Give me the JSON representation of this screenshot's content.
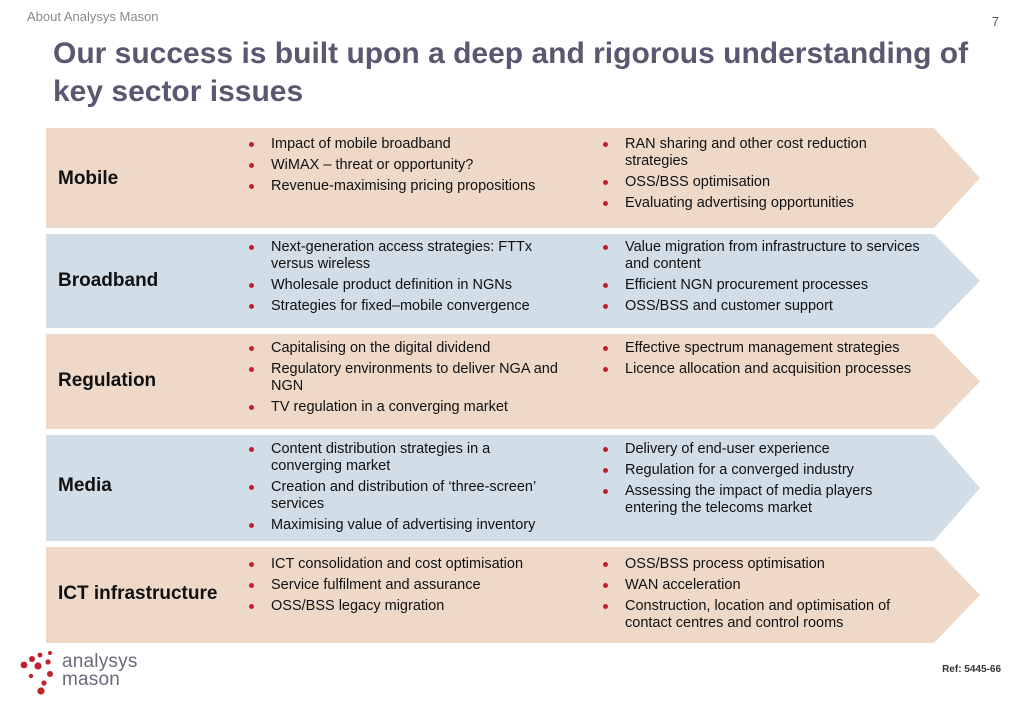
{
  "header": {
    "kicker": "About Analysys Mason",
    "page_number": "7",
    "title": "Our success is built upon a deep and rigorous understanding of key sector issues"
  },
  "colors": {
    "warm_band": "#eed9c9",
    "cool_band": "#d1dde7",
    "bullet": "#c0212b",
    "title": "#5a5870"
  },
  "sectors": [
    {
      "label": "Mobile",
      "left": [
        "Impact of mobile broadband",
        "WiMAX – threat or opportunity?",
        "Revenue-maximising pricing propositions"
      ],
      "right": [
        "RAN sharing and other cost reduction strategies",
        "OSS/BSS optimisation",
        "Evaluating advertising opportunities"
      ]
    },
    {
      "label": "Broadband",
      "left": [
        "Next-generation access strategies: FTTx versus wireless",
        "Wholesale product definition in NGNs",
        "Strategies for fixed–mobile convergence"
      ],
      "right": [
        "Value migration from infrastructure to services and content",
        "Efficient NGN procurement processes",
        "OSS/BSS and customer support"
      ]
    },
    {
      "label": "Regulation",
      "left": [
        "Capitalising on the digital dividend",
        "Regulatory environments to deliver NGA and NGN",
        "TV regulation in a converging market"
      ],
      "right": [
        "Effective spectrum management strategies",
        "Licence allocation and acquisition processes"
      ]
    },
    {
      "label": "Media",
      "left": [
        "Content distribution strategies in a converging market",
        "Creation and distribution of ‘three-screen’ services",
        "Maximising value of advertising inventory"
      ],
      "right": [
        "Delivery of end-user experience",
        "Regulation for a converged industry",
        "Assessing the impact of media players entering the telecoms market"
      ]
    },
    {
      "label": "ICT infrastructure",
      "left": [
        "ICT consolidation and cost optimisation",
        "Service fulfilment and assurance",
        "OSS/BSS legacy migration"
      ],
      "right": [
        "OSS/BSS process optimisation",
        "WAN acceleration",
        "Construction, location and optimisation of contact centres and control rooms"
      ]
    }
  ],
  "footer": {
    "logo_line1": "analysys",
    "logo_line2": "mason",
    "ref": "Ref: 5445-66"
  }
}
